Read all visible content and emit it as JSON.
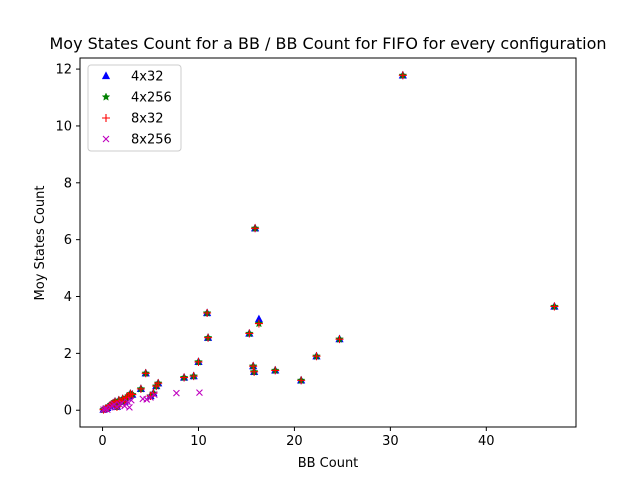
{
  "chart_data": {
    "type": "scatter",
    "title": "Moy States Count for a BB / BB Count for FIFO for every configuration",
    "xlabel": "BB Count",
    "ylabel": "Moy States Count",
    "xlim": [
      -2.35,
      49.35
    ],
    "ylim": [
      -0.59,
      12.39
    ],
    "xticks": [
      0,
      10,
      20,
      30,
      40
    ],
    "yticks": [
      0,
      2,
      4,
      6,
      8,
      10,
      12
    ],
    "legend_position": "upper-left",
    "grid": false,
    "series": [
      {
        "name": "4x32",
        "marker": "triangle",
        "color": "#0000ff",
        "points": [
          [
            0.1,
            0.02
          ],
          [
            0.3,
            0.05
          ],
          [
            0.5,
            0.08
          ],
          [
            0.7,
            0.15
          ],
          [
            0.9,
            0.2
          ],
          [
            1.1,
            0.25
          ],
          [
            1.3,
            0.3
          ],
          [
            1.5,
            0.12
          ],
          [
            1.7,
            0.35
          ],
          [
            1.9,
            0.3
          ],
          [
            2.1,
            0.4
          ],
          [
            2.3,
            0.3
          ],
          [
            2.5,
            0.45
          ],
          [
            2.7,
            0.5
          ],
          [
            2.9,
            0.58
          ],
          [
            3.1,
            0.55
          ],
          [
            4.0,
            0.75
          ],
          [
            4.5,
            1.3
          ],
          [
            5.0,
            0.5
          ],
          [
            5.3,
            0.6
          ],
          [
            5.6,
            0.85
          ],
          [
            5.8,
            0.95
          ],
          [
            8.5,
            1.15
          ],
          [
            9.5,
            1.2
          ],
          [
            10.0,
            1.7
          ],
          [
            10.9,
            3.42
          ],
          [
            11.0,
            2.55
          ],
          [
            15.3,
            2.7
          ],
          [
            15.7,
            1.55
          ],
          [
            15.8,
            1.35
          ],
          [
            15.9,
            6.4
          ],
          [
            16.3,
            3.2
          ],
          [
            18.0,
            1.4
          ],
          [
            20.7,
            1.05
          ],
          [
            22.3,
            1.9
          ],
          [
            24.7,
            2.5
          ],
          [
            31.3,
            11.78
          ],
          [
            47.1,
            3.65
          ]
        ]
      },
      {
        "name": "4x256",
        "marker": "star",
        "color": "#008000",
        "points": [
          [
            0.1,
            0.02
          ],
          [
            0.3,
            0.05
          ],
          [
            0.5,
            0.08
          ],
          [
            0.7,
            0.15
          ],
          [
            0.9,
            0.2
          ],
          [
            1.1,
            0.25
          ],
          [
            1.3,
            0.3
          ],
          [
            1.5,
            0.12
          ],
          [
            1.7,
            0.35
          ],
          [
            1.9,
            0.3
          ],
          [
            2.1,
            0.4
          ],
          [
            2.3,
            0.3
          ],
          [
            2.5,
            0.45
          ],
          [
            2.7,
            0.5
          ],
          [
            2.9,
            0.58
          ],
          [
            3.1,
            0.55
          ],
          [
            4.0,
            0.75
          ],
          [
            4.5,
            1.3
          ],
          [
            5.0,
            0.5
          ],
          [
            5.3,
            0.6
          ],
          [
            5.6,
            0.85
          ],
          [
            5.8,
            0.95
          ],
          [
            8.5,
            1.15
          ],
          [
            9.5,
            1.2
          ],
          [
            10.0,
            1.7
          ],
          [
            10.9,
            3.42
          ],
          [
            11.0,
            2.55
          ],
          [
            15.3,
            2.7
          ],
          [
            15.7,
            1.55
          ],
          [
            15.8,
            1.35
          ],
          [
            15.9,
            6.4
          ],
          [
            16.3,
            3.05
          ],
          [
            18.0,
            1.4
          ],
          [
            20.7,
            1.05
          ],
          [
            22.3,
            1.9
          ],
          [
            24.7,
            2.5
          ],
          [
            31.3,
            11.78
          ],
          [
            47.1,
            3.65
          ]
        ]
      },
      {
        "name": "8x32",
        "marker": "plus",
        "color": "#ff0000",
        "points": [
          [
            0.1,
            0.02
          ],
          [
            0.3,
            0.05
          ],
          [
            0.5,
            0.08
          ],
          [
            0.7,
            0.15
          ],
          [
            0.9,
            0.2
          ],
          [
            1.1,
            0.25
          ],
          [
            1.3,
            0.3
          ],
          [
            1.5,
            0.12
          ],
          [
            1.7,
            0.35
          ],
          [
            1.9,
            0.3
          ],
          [
            2.1,
            0.4
          ],
          [
            2.3,
            0.3
          ],
          [
            2.5,
            0.45
          ],
          [
            2.7,
            0.5
          ],
          [
            2.9,
            0.58
          ],
          [
            3.1,
            0.55
          ],
          [
            4.0,
            0.75
          ],
          [
            4.5,
            1.3
          ],
          [
            5.0,
            0.5
          ],
          [
            5.3,
            0.6
          ],
          [
            5.6,
            0.85
          ],
          [
            5.8,
            0.95
          ],
          [
            8.5,
            1.15
          ],
          [
            9.5,
            1.2
          ],
          [
            10.0,
            1.7
          ],
          [
            10.9,
            3.42
          ],
          [
            11.0,
            2.55
          ],
          [
            15.3,
            2.7
          ],
          [
            15.7,
            1.55
          ],
          [
            15.8,
            1.35
          ],
          [
            15.9,
            6.4
          ],
          [
            16.3,
            3.05
          ],
          [
            18.0,
            1.4
          ],
          [
            20.7,
            1.05
          ],
          [
            22.3,
            1.9
          ],
          [
            24.7,
            2.5
          ],
          [
            31.3,
            11.78
          ],
          [
            47.1,
            3.65
          ]
        ]
      },
      {
        "name": "8x256",
        "marker": "x",
        "color": "#bf00bf",
        "points": [
          [
            0.1,
            0.02
          ],
          [
            0.3,
            0.05
          ],
          [
            0.5,
            0.02
          ],
          [
            0.8,
            0.1
          ],
          [
            1.0,
            0.15
          ],
          [
            1.2,
            0.2
          ],
          [
            1.5,
            0.12
          ],
          [
            1.8,
            0.2
          ],
          [
            2.0,
            0.25
          ],
          [
            2.3,
            0.15
          ],
          [
            2.6,
            0.3
          ],
          [
            2.8,
            0.1
          ],
          [
            3.0,
            0.35
          ],
          [
            4.2,
            0.4
          ],
          [
            4.6,
            0.38
          ],
          [
            5.0,
            0.45
          ],
          [
            5.4,
            0.55
          ],
          [
            7.7,
            0.6
          ],
          [
            10.1,
            0.62
          ]
        ]
      }
    ]
  }
}
